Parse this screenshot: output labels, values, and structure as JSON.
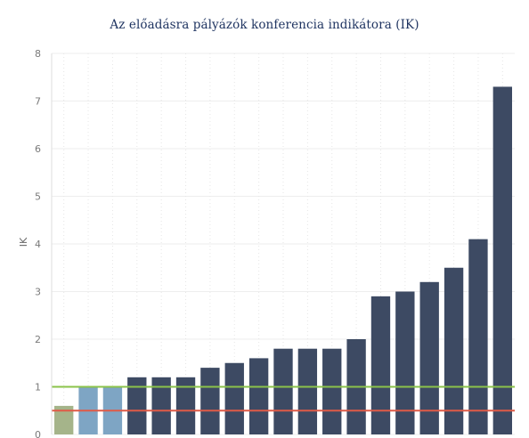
{
  "chart_data": {
    "type": "bar",
    "title": "Az előadásra pályázók konferencia indikátora (IK)",
    "xlabel": "",
    "ylabel": "IK",
    "ylim": [
      0,
      8
    ],
    "yticks": [
      "0",
      "1",
      "2",
      "3",
      "4",
      "5",
      "6",
      "7",
      "8"
    ],
    "grid": true,
    "values": [
      0.6,
      1.0,
      1.0,
      1.2,
      1.2,
      1.2,
      1.4,
      1.5,
      1.6,
      1.8,
      1.8,
      1.8,
      2.0,
      2.9,
      3.0,
      3.2,
      3.5,
      4.1,
      7.3
    ],
    "bar_colors": [
      "#a5b48a",
      "#7ea5c4",
      "#7ea5c4",
      "#3d4a63",
      "#3d4a63",
      "#3d4a63",
      "#3d4a63",
      "#3d4a63",
      "#3d4a63",
      "#3d4a63",
      "#3d4a63",
      "#3d4a63",
      "#3d4a63",
      "#3d4a63",
      "#3d4a63",
      "#3d4a63",
      "#3d4a63",
      "#3d4a63",
      "#3d4a63"
    ],
    "reference_lines": [
      {
        "value": 1.0,
        "color": "#8bc34a"
      },
      {
        "value": 0.5,
        "color": "#e05a47"
      }
    ]
  }
}
